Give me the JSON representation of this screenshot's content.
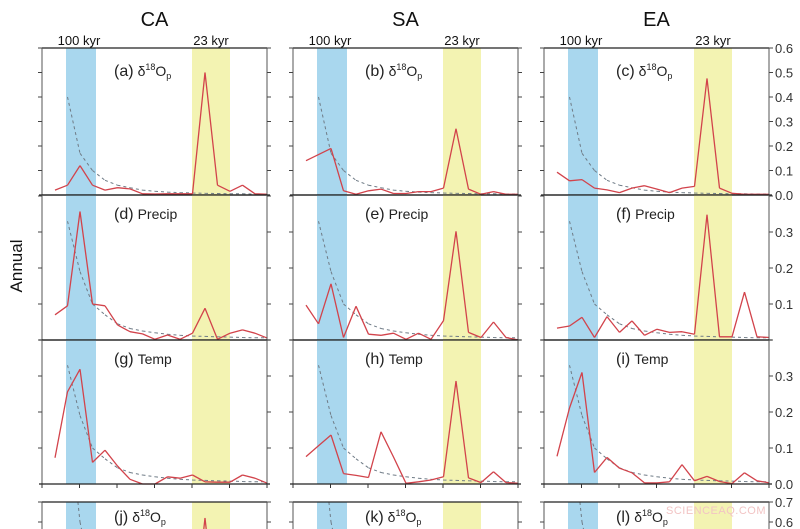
{
  "chart_data": {
    "type": "line",
    "ylabel": "Annual",
    "columns": [
      "CA",
      "SA",
      "EA"
    ],
    "bands": [
      {
        "label": "100 kyr",
        "color": "#a9d7ee"
      },
      {
        "label": "23 kyr",
        "color": "#f3f3b2"
      }
    ],
    "colors": {
      "series": "#d2434b",
      "background": "#6f7b86",
      "axis": "#222222"
    },
    "rows": [
      {
        "ylim": [
          0,
          0.6
        ],
        "yticks": [
          "0.0",
          "0.1",
          "0.2",
          "0.3",
          "0.4",
          "0.5",
          "0.6"
        ],
        "background": [
          null,
          0.4,
          0.17,
          0.1,
          0.06,
          0.04,
          0.03,
          0.02,
          0.015,
          0.012,
          0.01,
          0.008,
          0.007,
          0.006,
          0.005,
          0.005,
          0.004,
          0.004
        ]
      },
      {
        "ylim": [
          0,
          0.4
        ],
        "yticks": [
          "0.1",
          "0.2",
          "0.3"
        ],
        "background": [
          null,
          0.33,
          0.19,
          0.1,
          0.07,
          0.045,
          0.032,
          0.025,
          0.02,
          0.016,
          0.013,
          0.011,
          0.01,
          0.009,
          0.008,
          0.007,
          0.006,
          0.006
        ]
      },
      {
        "ylim": [
          0,
          0.4
        ],
        "yticks": [
          "0.0",
          "0.1",
          "0.2",
          "0.3"
        ],
        "background": [
          null,
          0.33,
          0.19,
          0.1,
          0.07,
          0.045,
          0.032,
          0.025,
          0.02,
          0.016,
          0.013,
          0.011,
          0.01,
          0.009,
          0.008,
          0.007,
          0.006,
          0.006
        ]
      },
      {
        "ylim": [
          0,
          0.7
        ],
        "yticks": [
          "0.6",
          "0.7"
        ],
        "background": [
          null,
          1.2,
          0.6,
          0.3,
          0.2,
          0.12,
          0.09,
          0.07,
          0.05,
          0.04,
          0.03,
          0.025,
          0.02,
          0.018,
          0.016,
          0.014,
          0.012,
          0.01
        ]
      }
    ],
    "panels": [
      {
        "letter": "(a)",
        "var": "δ",
        "sup": "18",
        "base": "O",
        "sub": "p",
        "row": 0,
        "col": 0,
        "values": [
          0.02,
          0.04,
          0.12,
          0.04,
          0.02,
          0.03,
          0.025,
          0.005,
          0.004,
          0.005,
          0.005,
          0.005,
          0.5,
          0.04,
          0.015,
          0.04,
          0.005,
          0.003
        ]
      },
      {
        "letter": "(b)",
        "var": "δ",
        "sup": "18",
        "base": "O",
        "sub": "p",
        "row": 0,
        "col": 1,
        "values": [
          0.14,
          0.165,
          0.19,
          0.017,
          0.003,
          0.017,
          0.024,
          0.006,
          0.006,
          0.014,
          0.014,
          0.028,
          0.27,
          0.024,
          0.003,
          0.014,
          0.003,
          0.003
        ]
      },
      {
        "letter": "(c)",
        "var": "δ",
        "sup": "18",
        "base": "O",
        "sub": "p",
        "row": 0,
        "col": 2,
        "values": [
          0.093,
          0.058,
          0.063,
          0.028,
          0.021,
          0.01,
          0.028,
          0.038,
          0.024,
          0.01,
          0.028,
          0.035,
          0.476,
          0.028,
          0.007,
          0.003,
          0.003,
          0.003
        ]
      },
      {
        "letter": "(d)",
        "var": "Precip",
        "row": 1,
        "col": 0,
        "values": [
          0.07,
          0.095,
          0.357,
          0.1,
          0.095,
          0.042,
          0.023,
          0.017,
          0.002,
          0.014,
          0.002,
          0.019,
          0.088,
          0.002,
          0.019,
          0.028,
          0.019,
          0.005
        ]
      },
      {
        "letter": "(e)",
        "var": "Precip",
        "row": 1,
        "col": 1,
        "values": [
          0.097,
          0.045,
          0.156,
          0.007,
          0.094,
          0.016,
          0.013,
          0.019,
          0.002,
          0.019,
          0.002,
          0.054,
          0.302,
          0.021,
          0.007,
          0.05,
          0.007,
          0.0
        ]
      },
      {
        "letter": "(f)",
        "var": "Precip",
        "row": 1,
        "col": 2,
        "values": [
          0.033,
          0.039,
          0.063,
          0.007,
          0.065,
          0.021,
          0.053,
          0.013,
          0.03,
          0.021,
          0.023,
          0.016,
          0.348,
          0.009,
          0.009,
          0.133,
          0.009,
          0.007
        ]
      },
      {
        "letter": "(g)",
        "var": "Temp",
        "row": 2,
        "col": 0,
        "values": [
          0.073,
          0.256,
          0.319,
          0.06,
          0.094,
          0.05,
          0.013,
          0.0,
          0.0,
          0.02,
          0.016,
          0.025,
          0.006,
          0.005,
          0.005,
          0.025,
          0.016,
          0.002
        ]
      },
      {
        "letter": "(h)",
        "var": "Temp",
        "row": 2,
        "col": 1,
        "values": [
          0.076,
          0.106,
          0.136,
          0.029,
          0.024,
          0.018,
          0.145,
          0.075,
          0.002,
          0.006,
          0.011,
          0.02,
          0.286,
          0.017,
          0.004,
          0.034,
          0.004,
          0.002
        ]
      },
      {
        "letter": "(i)",
        "var": "Temp",
        "row": 2,
        "col": 2,
        "values": [
          0.077,
          0.211,
          0.31,
          0.032,
          0.074,
          0.044,
          0.031,
          0.003,
          0.003,
          0.006,
          0.054,
          0.009,
          0.021,
          0.007,
          0.001,
          0.031,
          0.009,
          0.003
        ]
      },
      {
        "letter": "(j)",
        "var": "δ",
        "sup": "18",
        "base": "O",
        "sub": "p",
        "row": 3,
        "col": 0,
        "values": [
          null,
          null,
          null,
          null,
          null,
          null,
          null,
          null,
          null,
          null,
          null,
          0.05,
          0.62,
          0.05,
          null,
          null,
          null,
          null
        ]
      },
      {
        "letter": "(k)",
        "var": "δ",
        "sup": "18",
        "base": "O",
        "sub": "p",
        "row": 3,
        "col": 1,
        "values": []
      },
      {
        "letter": "(l)",
        "var": "δ",
        "sup": "18",
        "base": "O",
        "sub": "p",
        "row": 3,
        "col": 2,
        "values": []
      }
    ]
  },
  "watermark": "SCIENCEAQ.COM"
}
